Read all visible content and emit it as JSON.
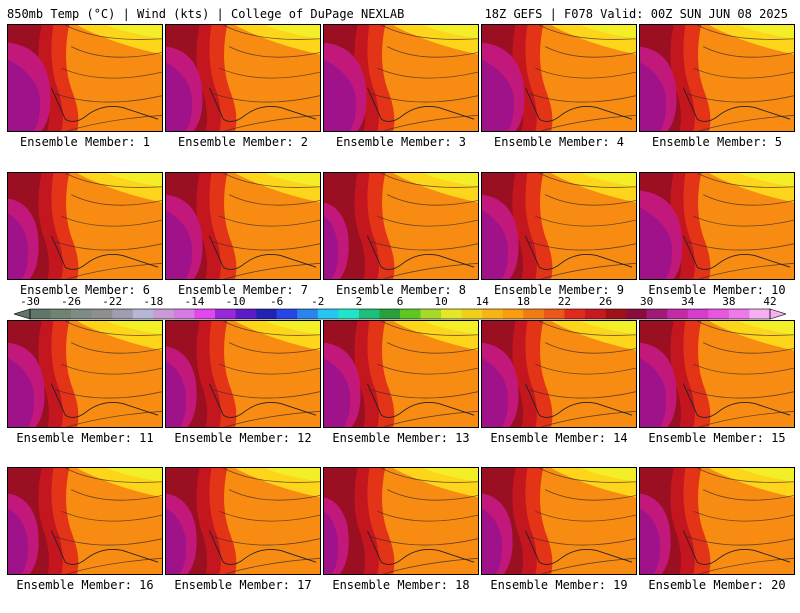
{
  "header": {
    "left_title": "850mb Temp (°C) | Wind (kts) | College of DuPage NEXLAB",
    "right_title": "18Z GEFS | F078 Valid: 00Z SUN JUN 08 2025"
  },
  "members": [
    {
      "label": "Ensemble Member: 1",
      "temp_shift": 3
    },
    {
      "label": "Ensemble Member: 2",
      "temp_shift": 2
    },
    {
      "label": "Ensemble Member: 3",
      "temp_shift": 3
    },
    {
      "label": "Ensemble Member: 4",
      "temp_shift": 3
    },
    {
      "label": "Ensemble Member: 5",
      "temp_shift": 2
    },
    {
      "label": "Ensemble Member: 6",
      "temp_shift": 1
    },
    {
      "label": "Ensemble Member: 7",
      "temp_shift": 2
    },
    {
      "label": "Ensemble Member: 8",
      "temp_shift": 0
    },
    {
      "label": "Ensemble Member: 9",
      "temp_shift": 2
    },
    {
      "label": "Ensemble Member: 10",
      "temp_shift": 3
    },
    {
      "label": "Ensemble Member: 11",
      "temp_shift": 2
    },
    {
      "label": "Ensemble Member: 12",
      "temp_shift": 1
    },
    {
      "label": "Ensemble Member: 13",
      "temp_shift": 2
    },
    {
      "label": "Ensemble Member: 14",
      "temp_shift": 2
    },
    {
      "label": "Ensemble Member: 15",
      "temp_shift": 2
    },
    {
      "label": "Ensemble Member: 16",
      "temp_shift": 1
    },
    {
      "label": "Ensemble Member: 17",
      "temp_shift": 1
    },
    {
      "label": "Ensemble Member: 18",
      "temp_shift": 0
    },
    {
      "label": "Ensemble Member: 19",
      "temp_shift": 1
    },
    {
      "label": "Ensemble Member: 20",
      "temp_shift": 1
    }
  ],
  "colorbar": {
    "labels": [
      "-30",
      "-26",
      "-22",
      "-18",
      "-14",
      "-10",
      "-6",
      "-2",
      "2",
      "6",
      "10",
      "14",
      "18",
      "22",
      "26",
      "30",
      "34",
      "38",
      "42"
    ],
    "colors": [
      "#5f7668",
      "#6e8470",
      "#7e8c86",
      "#8f8f8f",
      "#9e9eb0",
      "#b6b6d6",
      "#c89ad6",
      "#d67ae6",
      "#e246ee",
      "#9a28d8",
      "#5b1cc8",
      "#2222b4",
      "#2646e6",
      "#2a84f0",
      "#26c6f2",
      "#1ee6c8",
      "#1cc07a",
      "#28a03c",
      "#5cc820",
      "#a8d828",
      "#e6e628",
      "#f0d018",
      "#f8b414",
      "#f89c10",
      "#f27c14",
      "#ec5818",
      "#e02a1c",
      "#c81820",
      "#a01018",
      "#8a0c3c",
      "#a01a78",
      "#c42aa4",
      "#d83ccc",
      "#e656de",
      "#f078ea",
      "#f6b0f2"
    ],
    "min": -30,
    "max": 42
  }
}
